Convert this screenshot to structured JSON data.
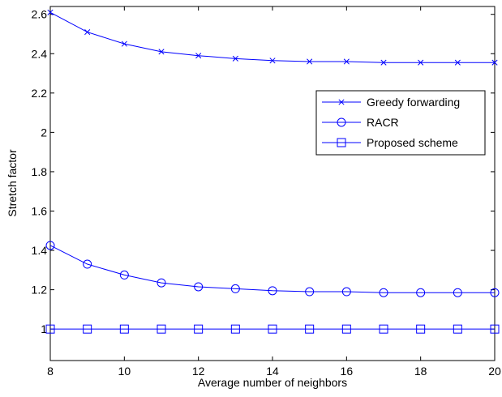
{
  "chart_data": {
    "type": "line",
    "title": "",
    "xlabel": "Average number of neighbors",
    "ylabel": "Stretch factor",
    "xlim": [
      8,
      20
    ],
    "ylim": [
      0.84,
      2.64
    ],
    "grid": false,
    "legend_position": "top-right",
    "x_ticks": [
      8,
      10,
      12,
      14,
      16,
      18,
      20
    ],
    "x_tick_labels": [
      "8",
      "10",
      "12",
      "14",
      "16",
      "18",
      "20"
    ],
    "y_ticks": [
      1,
      1.2,
      1.4,
      1.6,
      1.8,
      2,
      2.2,
      2.4,
      2.6
    ],
    "y_tick_labels": [
      "1",
      "1.2",
      "1.4",
      "1.6",
      "1.8",
      "2",
      "2.2",
      "2.4",
      "2.6"
    ],
    "line_color": "#0000ff",
    "x": [
      8,
      9,
      10,
      11,
      12,
      13,
      14,
      15,
      16,
      17,
      18,
      19,
      20
    ],
    "series": [
      {
        "name": "Greedy forwarding",
        "marker": "x",
        "values": [
          2.61,
          2.51,
          2.45,
          2.41,
          2.39,
          2.375,
          2.365,
          2.36,
          2.36,
          2.355,
          2.355,
          2.355,
          2.355
        ]
      },
      {
        "name": "RACR",
        "marker": "circle",
        "values": [
          1.425,
          1.33,
          1.275,
          1.235,
          1.215,
          1.205,
          1.195,
          1.19,
          1.19,
          1.185,
          1.185,
          1.185,
          1.185
        ]
      },
      {
        "name": "Proposed scheme",
        "marker": "square",
        "values": [
          1.0,
          1.0,
          1.0,
          1.0,
          1.0,
          1.0,
          1.0,
          1.0,
          1.0,
          1.0,
          1.0,
          1.0,
          1.0
        ]
      }
    ]
  }
}
